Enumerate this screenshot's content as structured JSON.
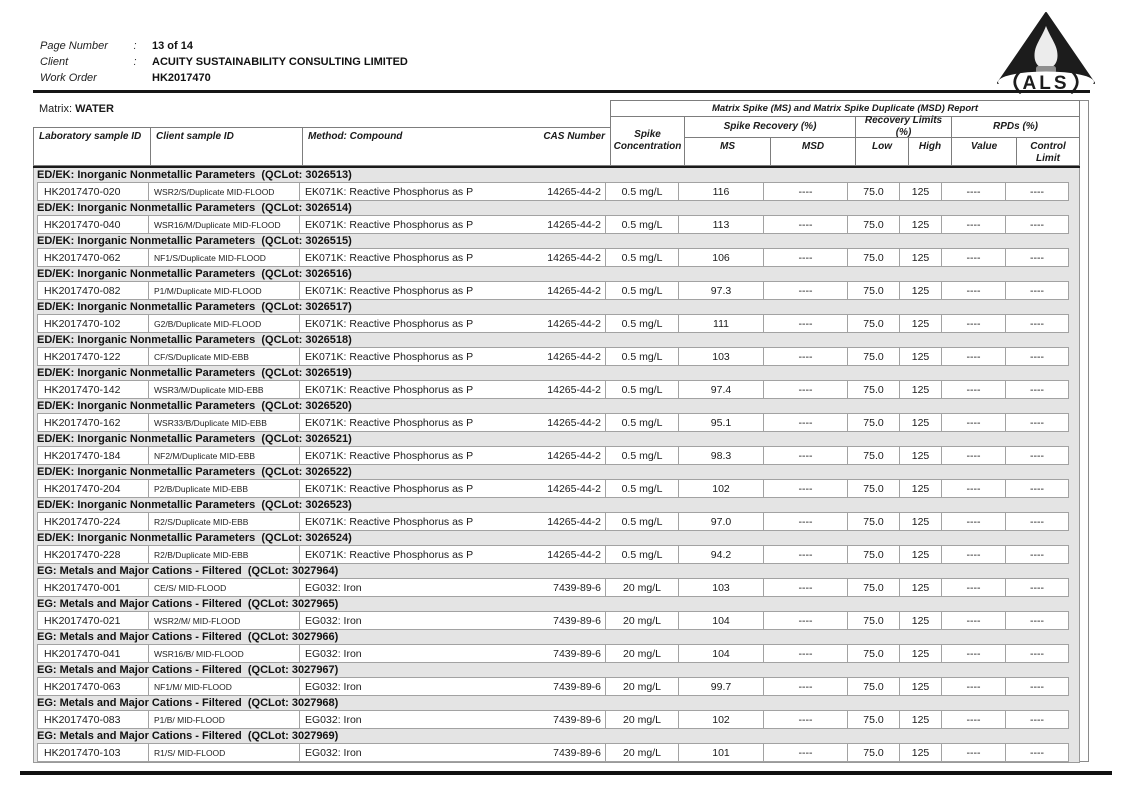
{
  "header": {
    "fields": [
      {
        "label": "Page Number",
        "colon": ":",
        "value": "13 of 14"
      },
      {
        "label": "Client",
        "colon": ":",
        "value": "ACUITY SUSTAINABILITY CONSULTING LIMITED"
      },
      {
        "label": "Work Order",
        "colon": "",
        "value": "HK2017470"
      }
    ],
    "logo_text": "ALS"
  },
  "matrix": {
    "label": "Matrix: ",
    "value": "WATER"
  },
  "table": {
    "report_title": "Matrix Spike (MS) and Matrix Spike Duplicate (MSD) Report",
    "columns": {
      "lab": "Laboratory sample ID",
      "client": "Client sample ID",
      "method": "Method: Compound",
      "cas": "CAS Number",
      "conc": "Spike Concentration",
      "spike_recovery": "Spike Recovery (%)",
      "recovery_limits": "Recovery Limits (%)",
      "rpds": "RPDs (%)",
      "ms": "MS",
      "msd": "MSD",
      "low": "Low",
      "high": "High",
      "value": "Value",
      "control_limit": "Control Limit"
    },
    "sections": [
      {
        "title": "ED/EK: Inorganic Nonmetallic Parameters  (QCLot: 3026513)",
        "row": {
          "lab_id": "HK2017470-020",
          "client_id": "WSR2/S/Duplicate MID-FLOOD",
          "method": "EK071K: Reactive Phosphorus as P",
          "cas": "14265-44-2",
          "conc": "0.5 mg/L",
          "ms": "116",
          "msd": "----",
          "low": "75.0",
          "high": "125",
          "value": "----",
          "control_limit": "----"
        }
      },
      {
        "title": "ED/EK: Inorganic Nonmetallic Parameters  (QCLot: 3026514)",
        "row": {
          "lab_id": "HK2017470-040",
          "client_id": "WSR16/M/Duplicate MID-FLOOD",
          "method": "EK071K: Reactive Phosphorus as P",
          "cas": "14265-44-2",
          "conc": "0.5 mg/L",
          "ms": "113",
          "msd": "----",
          "low": "75.0",
          "high": "125",
          "value": "----",
          "control_limit": "----"
        }
      },
      {
        "title": "ED/EK: Inorganic Nonmetallic Parameters  (QCLot: 3026515)",
        "row": {
          "lab_id": "HK2017470-062",
          "client_id": "NF1/S/Duplicate MID-FLOOD",
          "method": "EK071K: Reactive Phosphorus as P",
          "cas": "14265-44-2",
          "conc": "0.5 mg/L",
          "ms": "106",
          "msd": "----",
          "low": "75.0",
          "high": "125",
          "value": "----",
          "control_limit": "----"
        }
      },
      {
        "title": "ED/EK: Inorganic Nonmetallic Parameters  (QCLot: 3026516)",
        "row": {
          "lab_id": "HK2017470-082",
          "client_id": "P1/M/Duplicate MID-FLOOD",
          "method": "EK071K: Reactive Phosphorus as P",
          "cas": "14265-44-2",
          "conc": "0.5 mg/L",
          "ms": "97.3",
          "msd": "----",
          "low": "75.0",
          "high": "125",
          "value": "----",
          "control_limit": "----"
        }
      },
      {
        "title": "ED/EK: Inorganic Nonmetallic Parameters  (QCLot: 3026517)",
        "row": {
          "lab_id": "HK2017470-102",
          "client_id": "G2/B/Duplicate MID-FLOOD",
          "method": "EK071K: Reactive Phosphorus as P",
          "cas": "14265-44-2",
          "conc": "0.5 mg/L",
          "ms": "111",
          "msd": "----",
          "low": "75.0",
          "high": "125",
          "value": "----",
          "control_limit": "----"
        }
      },
      {
        "title": "ED/EK: Inorganic Nonmetallic Parameters  (QCLot: 3026518)",
        "row": {
          "lab_id": "HK2017470-122",
          "client_id": "CF/S/Duplicate MID-EBB",
          "method": "EK071K: Reactive Phosphorus as P",
          "cas": "14265-44-2",
          "conc": "0.5 mg/L",
          "ms": "103",
          "msd": "----",
          "low": "75.0",
          "high": "125",
          "value": "----",
          "control_limit": "----"
        }
      },
      {
        "title": "ED/EK: Inorganic Nonmetallic Parameters  (QCLot: 3026519)",
        "row": {
          "lab_id": "HK2017470-142",
          "client_id": "WSR3/M/Duplicate MID-EBB",
          "method": "EK071K: Reactive Phosphorus as P",
          "cas": "14265-44-2",
          "conc": "0.5 mg/L",
          "ms": "97.4",
          "msd": "----",
          "low": "75.0",
          "high": "125",
          "value": "----",
          "control_limit": "----"
        }
      },
      {
        "title": "ED/EK: Inorganic Nonmetallic Parameters  (QCLot: 3026520)",
        "row": {
          "lab_id": "HK2017470-162",
          "client_id": "WSR33/B/Duplicate MID-EBB",
          "method": "EK071K: Reactive Phosphorus as P",
          "cas": "14265-44-2",
          "conc": "0.5 mg/L",
          "ms": "95.1",
          "msd": "----",
          "low": "75.0",
          "high": "125",
          "value": "----",
          "control_limit": "----"
        }
      },
      {
        "title": "ED/EK: Inorganic Nonmetallic Parameters  (QCLot: 3026521)",
        "row": {
          "lab_id": "HK2017470-184",
          "client_id": "NF2/M/Duplicate MID-EBB",
          "method": "EK071K: Reactive Phosphorus as P",
          "cas": "14265-44-2",
          "conc": "0.5 mg/L",
          "ms": "98.3",
          "msd": "----",
          "low": "75.0",
          "high": "125",
          "value": "----",
          "control_limit": "----"
        }
      },
      {
        "title": "ED/EK: Inorganic Nonmetallic Parameters  (QCLot: 3026522)",
        "row": {
          "lab_id": "HK2017470-204",
          "client_id": "P2/B/Duplicate MID-EBB",
          "method": "EK071K: Reactive Phosphorus as P",
          "cas": "14265-44-2",
          "conc": "0.5 mg/L",
          "ms": "102",
          "msd": "----",
          "low": "75.0",
          "high": "125",
          "value": "----",
          "control_limit": "----"
        }
      },
      {
        "title": "ED/EK: Inorganic Nonmetallic Parameters  (QCLot: 3026523)",
        "row": {
          "lab_id": "HK2017470-224",
          "client_id": "R2/S/Duplicate MID-EBB",
          "method": "EK071K: Reactive Phosphorus as P",
          "cas": "14265-44-2",
          "conc": "0.5 mg/L",
          "ms": "97.0",
          "msd": "----",
          "low": "75.0",
          "high": "125",
          "value": "----",
          "control_limit": "----"
        }
      },
      {
        "title": "ED/EK: Inorganic Nonmetallic Parameters  (QCLot: 3026524)",
        "row": {
          "lab_id": "HK2017470-228",
          "client_id": "R2/B/Duplicate MID-EBB",
          "method": "EK071K: Reactive Phosphorus as P",
          "cas": "14265-44-2",
          "conc": "0.5 mg/L",
          "ms": "94.2",
          "msd": "----",
          "low": "75.0",
          "high": "125",
          "value": "----",
          "control_limit": "----"
        }
      },
      {
        "title": "EG: Metals and Major Cations - Filtered  (QCLot: 3027964)",
        "row": {
          "lab_id": "HK2017470-001",
          "client_id": "CE/S/ MID-FLOOD",
          "method": "EG032: Iron",
          "cas": "7439-89-6",
          "conc": "20 mg/L",
          "ms": "103",
          "msd": "----",
          "low": "75.0",
          "high": "125",
          "value": "----",
          "control_limit": "----"
        }
      },
      {
        "title": "EG: Metals and Major Cations - Filtered  (QCLot: 3027965)",
        "row": {
          "lab_id": "HK2017470-021",
          "client_id": "WSR2/M/ MID-FLOOD",
          "method": "EG032: Iron",
          "cas": "7439-89-6",
          "conc": "20 mg/L",
          "ms": "104",
          "msd": "----",
          "low": "75.0",
          "high": "125",
          "value": "----",
          "control_limit": "----"
        }
      },
      {
        "title": "EG: Metals and Major Cations - Filtered  (QCLot: 3027966)",
        "row": {
          "lab_id": "HK2017470-041",
          "client_id": "WSR16/B/ MID-FLOOD",
          "method": "EG032: Iron",
          "cas": "7439-89-6",
          "conc": "20 mg/L",
          "ms": "104",
          "msd": "----",
          "low": "75.0",
          "high": "125",
          "value": "----",
          "control_limit": "----"
        }
      },
      {
        "title": "EG: Metals and Major Cations - Filtered  (QCLot: 3027967)",
        "row": {
          "lab_id": "HK2017470-063",
          "client_id": "NF1/M/ MID-FLOOD",
          "method": "EG032: Iron",
          "cas": "7439-89-6",
          "conc": "20 mg/L",
          "ms": "99.7",
          "msd": "----",
          "low": "75.0",
          "high": "125",
          "value": "----",
          "control_limit": "----"
        }
      },
      {
        "title": "EG: Metals and Major Cations - Filtered  (QCLot: 3027968)",
        "row": {
          "lab_id": "HK2017470-083",
          "client_id": "P1/B/ MID-FLOOD",
          "method": "EG032: Iron",
          "cas": "7439-89-6",
          "conc": "20 mg/L",
          "ms": "102",
          "msd": "----",
          "low": "75.0",
          "high": "125",
          "value": "----",
          "control_limit": "----"
        }
      },
      {
        "title": "EG: Metals and Major Cations - Filtered  (QCLot: 3027969)",
        "row": {
          "lab_id": "HK2017470-103",
          "client_id": "R1/S/ MID-FLOOD",
          "method": "EG032: Iron",
          "cas": "7439-89-6",
          "conc": "20 mg/L",
          "ms": "101",
          "msd": "----",
          "low": "75.0",
          "high": "125",
          "value": "----",
          "control_limit": "----"
        }
      }
    ]
  }
}
